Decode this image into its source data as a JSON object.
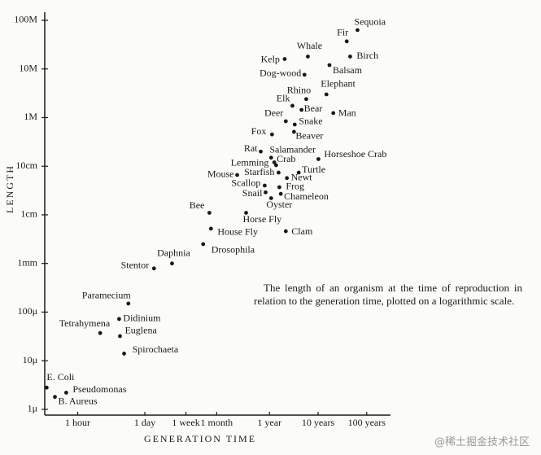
{
  "chart_data": {
    "type": "scatter",
    "x_label": "GENERATION TIME",
    "y_label": "LENGTH",
    "annotation": "The length of an organism at the time of reproduction in relation to the generation time, plotted on a logarithmic scale.",
    "log_x": true,
    "log_y": true,
    "color": "#1a1a1a",
    "xlim": [
      0.21,
      2700000
    ],
    "ylim": [
      7.6e-07,
      147
    ],
    "xticks": [
      {
        "value": 1,
        "label": "1 hour"
      },
      {
        "value": 24,
        "label": "1 day"
      },
      {
        "value": 168,
        "label": "1 week"
      },
      {
        "value": 720,
        "label": "1 month"
      },
      {
        "value": 8760,
        "label": "1 year"
      },
      {
        "value": 87600,
        "label": "10 years"
      },
      {
        "value": 876000,
        "label": "100 years"
      }
    ],
    "yticks": [
      {
        "value": 1e-06,
        "label": "1μ"
      },
      {
        "value": 1e-05,
        "label": "10μ"
      },
      {
        "value": 0.0001,
        "label": "100μ"
      },
      {
        "value": 0.001,
        "label": "1mm"
      },
      {
        "value": 0.01,
        "label": "1cm"
      },
      {
        "value": 0.1,
        "label": "10cm"
      },
      {
        "value": 1,
        "label": "1M"
      },
      {
        "value": 10,
        "label": "10M"
      },
      {
        "value": 100,
        "label": "100M"
      }
    ],
    "labels": [
      "Sequoia",
      "Fir",
      "Birch",
      "Whale",
      "Kelp",
      "Balsam",
      "Dog-wood",
      "Elephant",
      "Rhino",
      "Elk",
      "Bear",
      "Man",
      "Deer",
      "Snake",
      "Fox",
      "Beaver",
      "Rat",
      "Salamander",
      "Horseshoe Crab",
      "Crab",
      "Lemming",
      "Starfish",
      "Turtle",
      "Mouse",
      "Newt",
      "Scallop",
      "Frog",
      "Snail",
      "Oyster",
      "Chameleon",
      "Bee",
      "Horse Fly",
      "House Fly",
      "Clam",
      "Drosophila",
      "Daphnia",
      "Stentor",
      "Paramecium",
      "Didinium",
      "Tetrahymena",
      "Euglena",
      "Spirochaeta",
      "E. Coli",
      "Pseudomonas",
      "B. Aureus"
    ],
    "x": [
      566000,
      340000,
      400000,
      54000,
      18000,
      150000,
      46000,
      130000,
      50000,
      26000,
      40000,
      180000,
      19000,
      29000,
      9900,
      28000,
      5800,
      9500,
      89000,
      11000,
      12000,
      13500,
      35000,
      1900,
      20000,
      7000,
      14000,
      7300,
      9500,
      15000,
      510,
      2900,
      550,
      19000,
      380,
      87,
      37,
      11,
      7.1,
      2.9,
      7.4,
      9.0,
      0.23,
      0.58,
      0.34
    ],
    "values": [
      63,
      37,
      18,
      18,
      16,
      12,
      7.6,
      3.0,
      2.4,
      1.75,
      1.44,
      1.24,
      0.84,
      0.72,
      0.45,
      0.51,
      0.2,
      0.15,
      0.14,
      0.12,
      0.105,
      0.074,
      0.074,
      0.066,
      0.057,
      0.04,
      0.037,
      0.029,
      0.022,
      0.027,
      0.011,
      0.011,
      0.0052,
      0.0046,
      0.0025,
      0.001,
      0.00079,
      0.00015,
      7.2e-05,
      3.7e-05,
      3.2e-05,
      1.4e-05,
      2.8e-06,
      2.2e-06,
      1.8e-06
    ]
  },
  "watermark": "@稀土掘金技术社区"
}
